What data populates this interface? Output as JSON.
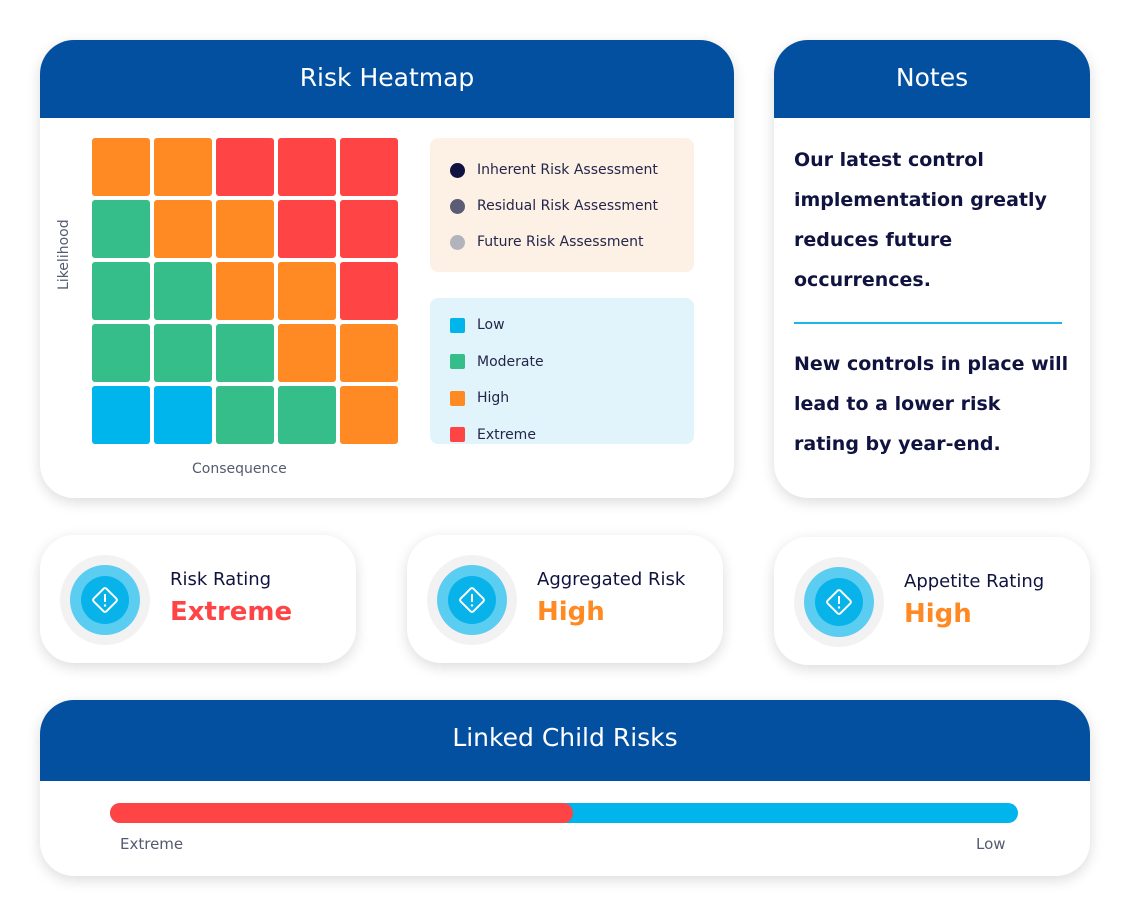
{
  "heatmap": {
    "title": "Risk Heatmap",
    "y_label": "Likelihood",
    "x_label": "Consequence",
    "rows": [
      [
        "High",
        "High",
        "Extreme",
        "Extreme",
        "Extreme"
      ],
      [
        "Moderate",
        "High",
        "High",
        "Extreme",
        "Extreme"
      ],
      [
        "Moderate",
        "Moderate",
        "High",
        "High",
        "Extreme"
      ],
      [
        "Moderate",
        "Moderate",
        "Moderate",
        "High",
        "High"
      ],
      [
        "Low",
        "Low",
        "Moderate",
        "Moderate",
        "High"
      ]
    ],
    "assessments": [
      {
        "label": "Inherent Risk Assessment",
        "color": "#10133f"
      },
      {
        "label": "Residual Risk Assessment",
        "color": "#5a5d75"
      },
      {
        "label": "Future Risk Assessment",
        "color": "#b3b3bd"
      }
    ],
    "levels": [
      {
        "label": "Low",
        "color": "#00b5ec"
      },
      {
        "label": "Moderate",
        "color": "#35bd8a"
      },
      {
        "label": "High",
        "color": "#ff8a24"
      },
      {
        "label": "Extreme",
        "color": "#ff4446"
      }
    ]
  },
  "notes": {
    "title": "Notes",
    "paragraphs": [
      "Our latest control implementation greatly reduces future occurrences.",
      "New controls in place will lead to a lower risk rating by year-end."
    ]
  },
  "stats": [
    {
      "label": "Risk Rating",
      "value": "Extreme",
      "color": "#ff4446"
    },
    {
      "label": "Aggregated Risk",
      "value": "High",
      "color": "#ff8a24"
    },
    {
      "label": "Appetite Rating",
      "value": "High",
      "color": "#ff8a24"
    }
  ],
  "linked": {
    "title": "Linked Child Risks",
    "extreme_fraction": 0.51,
    "left_label": "Extreme",
    "right_label": "Low"
  }
}
